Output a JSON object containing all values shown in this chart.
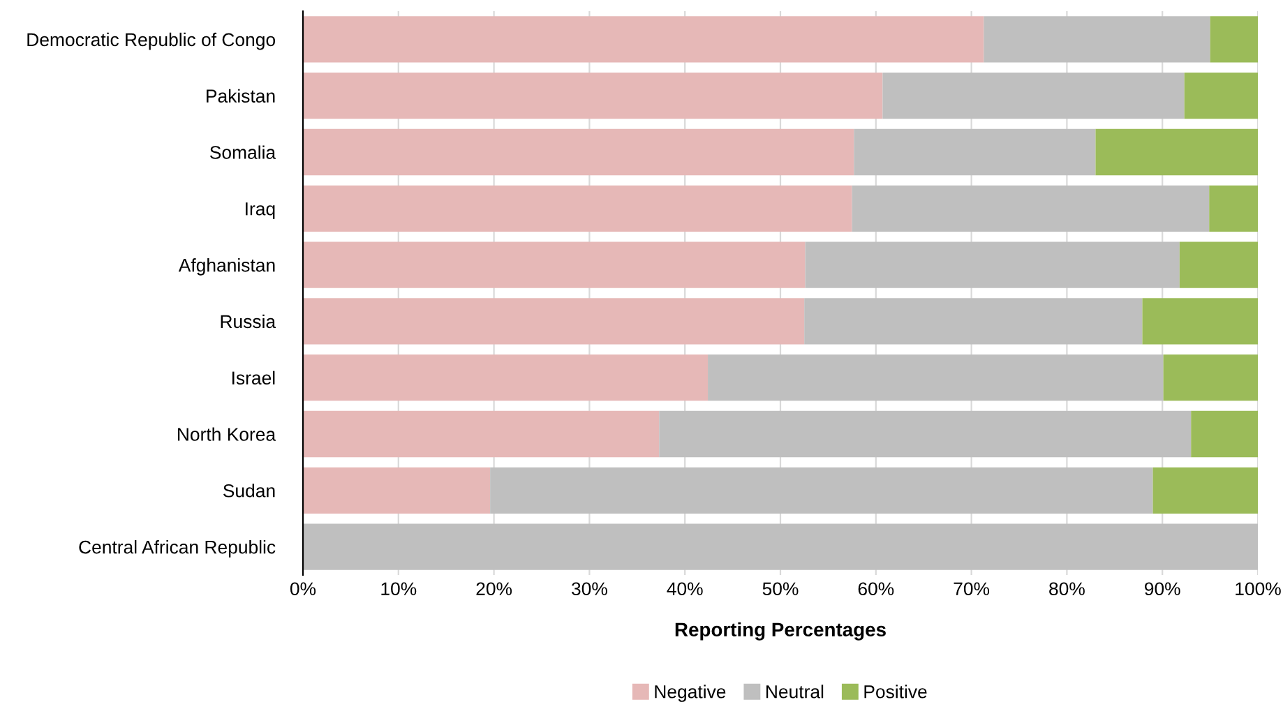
{
  "chart_data": {
    "type": "bar",
    "orientation": "horizontal",
    "stacked": true,
    "xlabel": "Reporting Percentages",
    "categories": [
      "Democratic Republic of Congo",
      "Pakistan",
      "Somalia",
      "Iraq",
      "Afghanistan",
      "Russia",
      "Israel",
      "North Korea",
      "Sudan",
      "Central African Republic"
    ],
    "series": [
      {
        "name": "Negative",
        "color": "#e6b8b7",
        "values": [
          71.3,
          60.7,
          57.7,
          57.5,
          52.6,
          52.5,
          42.4,
          37.3,
          19.6,
          0
        ]
      },
      {
        "name": "Neutral",
        "color": "#bfbfbf",
        "values": [
          23.7,
          31.6,
          25.3,
          37.4,
          39.2,
          35.4,
          47.7,
          55.7,
          69.4,
          100
        ]
      },
      {
        "name": "Positive",
        "color": "#9bbb59",
        "values": [
          5.0,
          7.7,
          17.0,
          5.1,
          8.2,
          12.1,
          9.9,
          7.0,
          11.0,
          0
        ]
      }
    ],
    "xlim": [
      0,
      100
    ],
    "xticks": [
      {
        "value": 0,
        "label": "0%"
      },
      {
        "value": 10,
        "label": "10%"
      },
      {
        "value": 20,
        "label": "20%"
      },
      {
        "value": 30,
        "label": "30%"
      },
      {
        "value": 40,
        "label": "40%"
      },
      {
        "value": 50,
        "label": "50%"
      },
      {
        "value": 60,
        "label": "60%"
      },
      {
        "value": 70,
        "label": "70%"
      },
      {
        "value": 80,
        "label": "80%"
      },
      {
        "value": 90,
        "label": "90%"
      },
      {
        "value": 100,
        "label": "100%"
      }
    ],
    "grid": "x",
    "legend": "bottom"
  }
}
